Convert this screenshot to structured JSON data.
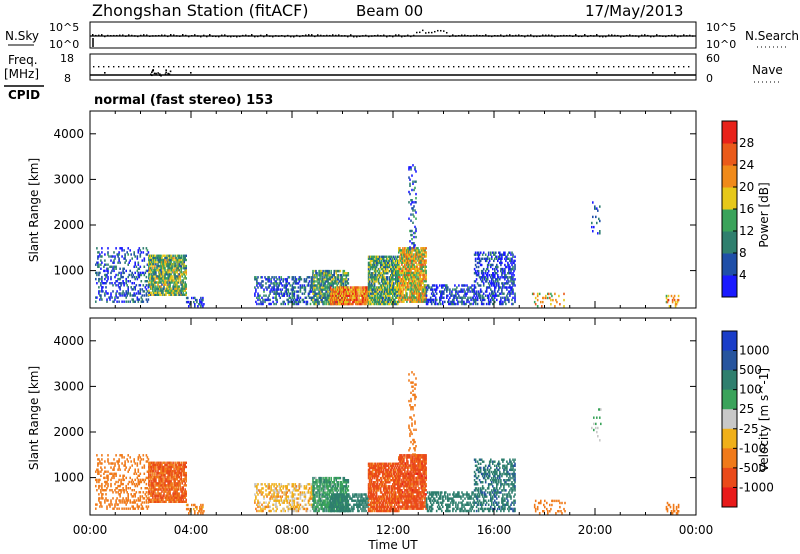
{
  "header": {
    "station": "Zhongshan Station (fitACF)",
    "beam": "Beam 00",
    "date": "17/May/2013"
  },
  "noise_panel": {
    "left_label": "N.Sky",
    "right_label": "N.Search",
    "left_ticks": [
      "10^5",
      "10^0"
    ],
    "right_ticks": [
      "10^5",
      "10^0"
    ]
  },
  "freq_panel": {
    "left_label_1": "Freq.",
    "left_label_2": "[MHz]",
    "right_label": "Nave",
    "left_ticks": [
      "18",
      "8"
    ],
    "right_ticks": [
      "60",
      "0"
    ],
    "cpid_label": "CPID",
    "cpid_text": "normal (fast stereo) 153"
  },
  "colors": {
    "power_scale": [
      "#1a1aff",
      "#1f4fa8",
      "#2f7f6e",
      "#3aa35a",
      "#e6c81a",
      "#f08a1a",
      "#ea5a1a",
      "#e8221a"
    ],
    "velocity_scale": [
      "#1a3dc8",
      "#27559e",
      "#2f7f6e",
      "#3aa35a",
      "#c8c8c8",
      "#f0b01a",
      "#f07a1a",
      "#ea4a1a",
      "#e81a1a"
    ]
  },
  "chart_data": [
    {
      "type": "heatmap",
      "title": "",
      "xlabel": "Time UT",
      "ylabel": "Slant Range [km]",
      "xlim_hours": [
        0,
        24
      ],
      "ylim": [
        180,
        4500
      ],
      "x_tick_labels": [
        "00:00",
        "04:00",
        "08:00",
        "12:00",
        "16:00",
        "20:00",
        "00:00"
      ],
      "y_ticks": [
        1000,
        2000,
        3000,
        4000
      ],
      "colorbar": {
        "label": "Power [dB]",
        "range": [
          0,
          32
        ],
        "ticks": [
          4,
          8,
          12,
          16,
          20,
          24,
          28
        ]
      },
      "regions": [
        {
          "t": [
            0.2,
            2.3
          ],
          "r": [
            300,
            1500
          ],
          "value": 6,
          "density": 0.25
        },
        {
          "t": [
            2.3,
            3.8
          ],
          "r": [
            450,
            1350
          ],
          "value": 14,
          "density": 0.75
        },
        {
          "t": [
            3.8,
            4.5
          ],
          "r": [
            200,
            420
          ],
          "value": 5,
          "density": 0.3
        },
        {
          "t": [
            6.5,
            8.8
          ],
          "r": [
            250,
            850
          ],
          "value": 6,
          "density": 0.4
        },
        {
          "t": [
            8.8,
            10.2
          ],
          "r": [
            250,
            1000
          ],
          "value": 12,
          "density": 0.7
        },
        {
          "t": [
            9.5,
            11.0
          ],
          "r": [
            250,
            650
          ],
          "value": 24,
          "density": 0.8
        },
        {
          "t": [
            11.0,
            12.2
          ],
          "r": [
            250,
            1300
          ],
          "value": 13,
          "density": 0.75
        },
        {
          "t": [
            12.2,
            13.3
          ],
          "r": [
            300,
            1500
          ],
          "value": 19,
          "density": 0.8
        },
        {
          "t": [
            12.6,
            12.9
          ],
          "r": [
            1400,
            3300
          ],
          "value": 6,
          "density": 0.2
        },
        {
          "t": [
            13.3,
            15.2
          ],
          "r": [
            250,
            700
          ],
          "value": 5,
          "density": 0.45
        },
        {
          "t": [
            15.2,
            16.8
          ],
          "r": [
            250,
            1400
          ],
          "value": 5,
          "density": 0.4
        },
        {
          "t": [
            17.5,
            18.8
          ],
          "r": [
            200,
            500
          ],
          "value": 20,
          "density": 0.15
        },
        {
          "t": [
            19.8,
            20.2
          ],
          "r": [
            1800,
            2500
          ],
          "value": 6,
          "density": 0.1
        },
        {
          "t": [
            22.8,
            23.3
          ],
          "r": [
            200,
            450
          ],
          "value": 22,
          "density": 0.3
        }
      ]
    },
    {
      "type": "heatmap",
      "title": "",
      "xlabel": "Time UT",
      "ylabel": "Slant Range [km]",
      "xlim_hours": [
        0,
        24
      ],
      "ylim": [
        180,
        4500
      ],
      "x_tick_labels": [
        "00:00",
        "04:00",
        "08:00",
        "12:00",
        "16:00",
        "20:00",
        "00:00"
      ],
      "y_ticks": [
        1000,
        2000,
        3000,
        4000
      ],
      "colorbar": {
        "label": "Velocity [m s^-1]",
        "tick_labels": [
          "1000",
          "500",
          "100",
          "25",
          "-25",
          "-100",
          "-500",
          "-1000"
        ]
      },
      "regions": [
        {
          "t": [
            0.2,
            2.3
          ],
          "r": [
            300,
            1500
          ],
          "value": -300,
          "density": 0.25
        },
        {
          "t": [
            2.3,
            3.8
          ],
          "r": [
            450,
            1350
          ],
          "value": -500,
          "density": 0.75
        },
        {
          "t": [
            3.8,
            4.5
          ],
          "r": [
            200,
            420
          ],
          "value": -150,
          "density": 0.3
        },
        {
          "t": [
            6.5,
            8.8
          ],
          "r": [
            250,
            850
          ],
          "value": -60,
          "density": 0.4
        },
        {
          "t": [
            8.8,
            10.2
          ],
          "r": [
            250,
            1000
          ],
          "value": 80,
          "density": 0.7
        },
        {
          "t": [
            9.5,
            11.0
          ],
          "r": [
            250,
            650
          ],
          "value": 300,
          "density": 0.6
        },
        {
          "t": [
            11.0,
            12.2
          ],
          "r": [
            250,
            1300
          ],
          "value": -600,
          "density": 0.75
        },
        {
          "t": [
            12.2,
            13.3
          ],
          "r": [
            300,
            1500
          ],
          "value": -700,
          "density": 0.8
        },
        {
          "t": [
            12.6,
            12.9
          ],
          "r": [
            1400,
            3300
          ],
          "value": -200,
          "density": 0.2
        },
        {
          "t": [
            13.3,
            15.2
          ],
          "r": [
            250,
            700
          ],
          "value": 200,
          "density": 0.45
        },
        {
          "t": [
            15.2,
            16.8
          ],
          "r": [
            250,
            1400
          ],
          "value": 400,
          "density": 0.4
        },
        {
          "t": [
            17.5,
            18.8
          ],
          "r": [
            200,
            500
          ],
          "value": -200,
          "density": 0.15
        },
        {
          "t": [
            19.8,
            20.2
          ],
          "r": [
            1800,
            2500
          ],
          "value": 30,
          "density": 0.1
        },
        {
          "t": [
            22.8,
            23.3
          ],
          "r": [
            200,
            450
          ],
          "value": -250,
          "density": 0.3
        }
      ]
    }
  ]
}
